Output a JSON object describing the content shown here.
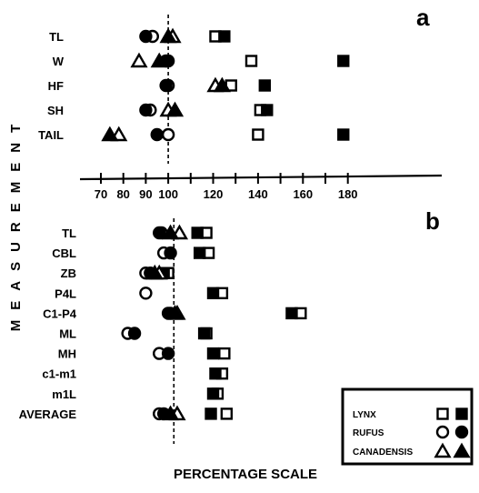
{
  "chart_data": [
    {
      "panel": "a",
      "type": "scatter",
      "categories": [
        "TL",
        "W",
        "HF",
        "SH",
        "TAIL"
      ],
      "xlim": [
        65,
        188
      ],
      "xticks": [
        70,
        80,
        90,
        100,
        110,
        120,
        130,
        140,
        150,
        160,
        170,
        180
      ],
      "xtick_labels": [
        "70",
        "80",
        "90",
        "100",
        "120",
        "140",
        "160",
        "180"
      ],
      "reference_line": 100,
      "series": [
        {
          "key": "lynx_open",
          "marker": "square",
          "fill": "open",
          "values": [
            121,
            137,
            128,
            141,
            140
          ]
        },
        {
          "key": "lynx_filled",
          "marker": "square",
          "fill": "filled",
          "values": [
            125,
            178,
            143,
            144,
            178
          ]
        },
        {
          "key": "rufus_open",
          "marker": "circle",
          "fill": "open",
          "values": [
            93,
            99,
            100,
            92,
            100
          ]
        },
        {
          "key": "rufus_filled",
          "marker": "circle",
          "fill": "filled",
          "values": [
            90,
            100,
            99,
            90,
            95
          ]
        },
        {
          "key": "canadensis_open",
          "marker": "triangle",
          "fill": "open",
          "values": [
            102,
            87,
            121,
            100,
            78
          ]
        },
        {
          "key": "canadensis_filled",
          "marker": "triangle",
          "fill": "filled",
          "values": [
            100,
            96,
            124,
            103,
            74
          ]
        }
      ]
    },
    {
      "panel": "b",
      "type": "scatter",
      "categories": [
        "TL",
        "CBL",
        "ZB",
        "P4L",
        "C1-P4",
        "ML",
        "MH",
        "c1-m1",
        "m1L",
        "AVERAGE"
      ],
      "xlim": [
        65,
        188
      ],
      "reference_line": 102.5,
      "series": [
        {
          "key": "lynx_open",
          "marker": "square",
          "fill": "open",
          "values": [
            117,
            118,
            100,
            124,
            159,
            117,
            125,
            124,
            122,
            126
          ]
        },
        {
          "key": "lynx_filled",
          "marker": "square",
          "fill": "filled",
          "values": [
            113,
            114,
            98,
            120,
            155,
            116,
            120,
            121,
            120,
            119
          ]
        },
        {
          "key": "rufus_open",
          "marker": "circle",
          "fill": "open",
          "values": [
            97,
            98,
            90,
            90,
            101,
            82,
            96,
            0,
            0,
            96
          ]
        },
        {
          "key": "rufus_filled",
          "marker": "circle",
          "fill": "filled",
          "values": [
            96,
            101,
            92,
            0,
            100,
            85,
            100,
            0,
            0,
            98
          ]
        },
        {
          "key": "canadensis_open",
          "marker": "triangle",
          "fill": "open",
          "values": [
            105,
            0,
            96,
            0,
            104,
            0,
            0,
            0,
            0,
            104
          ]
        },
        {
          "key": "canadensis_filled",
          "marker": "triangle",
          "fill": "filled",
          "values": [
            101,
            0,
            94,
            0,
            103,
            0,
            0,
            0,
            0,
            101
          ]
        }
      ]
    }
  ],
  "labels": {
    "panel_a": "a",
    "panel_b": "b",
    "ylabel": "MEASUREMENT",
    "xlabel": "PERCENTAGE SCALE"
  },
  "legend": {
    "entries": [
      {
        "label": "LYNX",
        "marker": "square"
      },
      {
        "label": "RUFUS",
        "marker": "circle"
      },
      {
        "label": "CANADENSIS",
        "marker": "triangle"
      }
    ]
  }
}
